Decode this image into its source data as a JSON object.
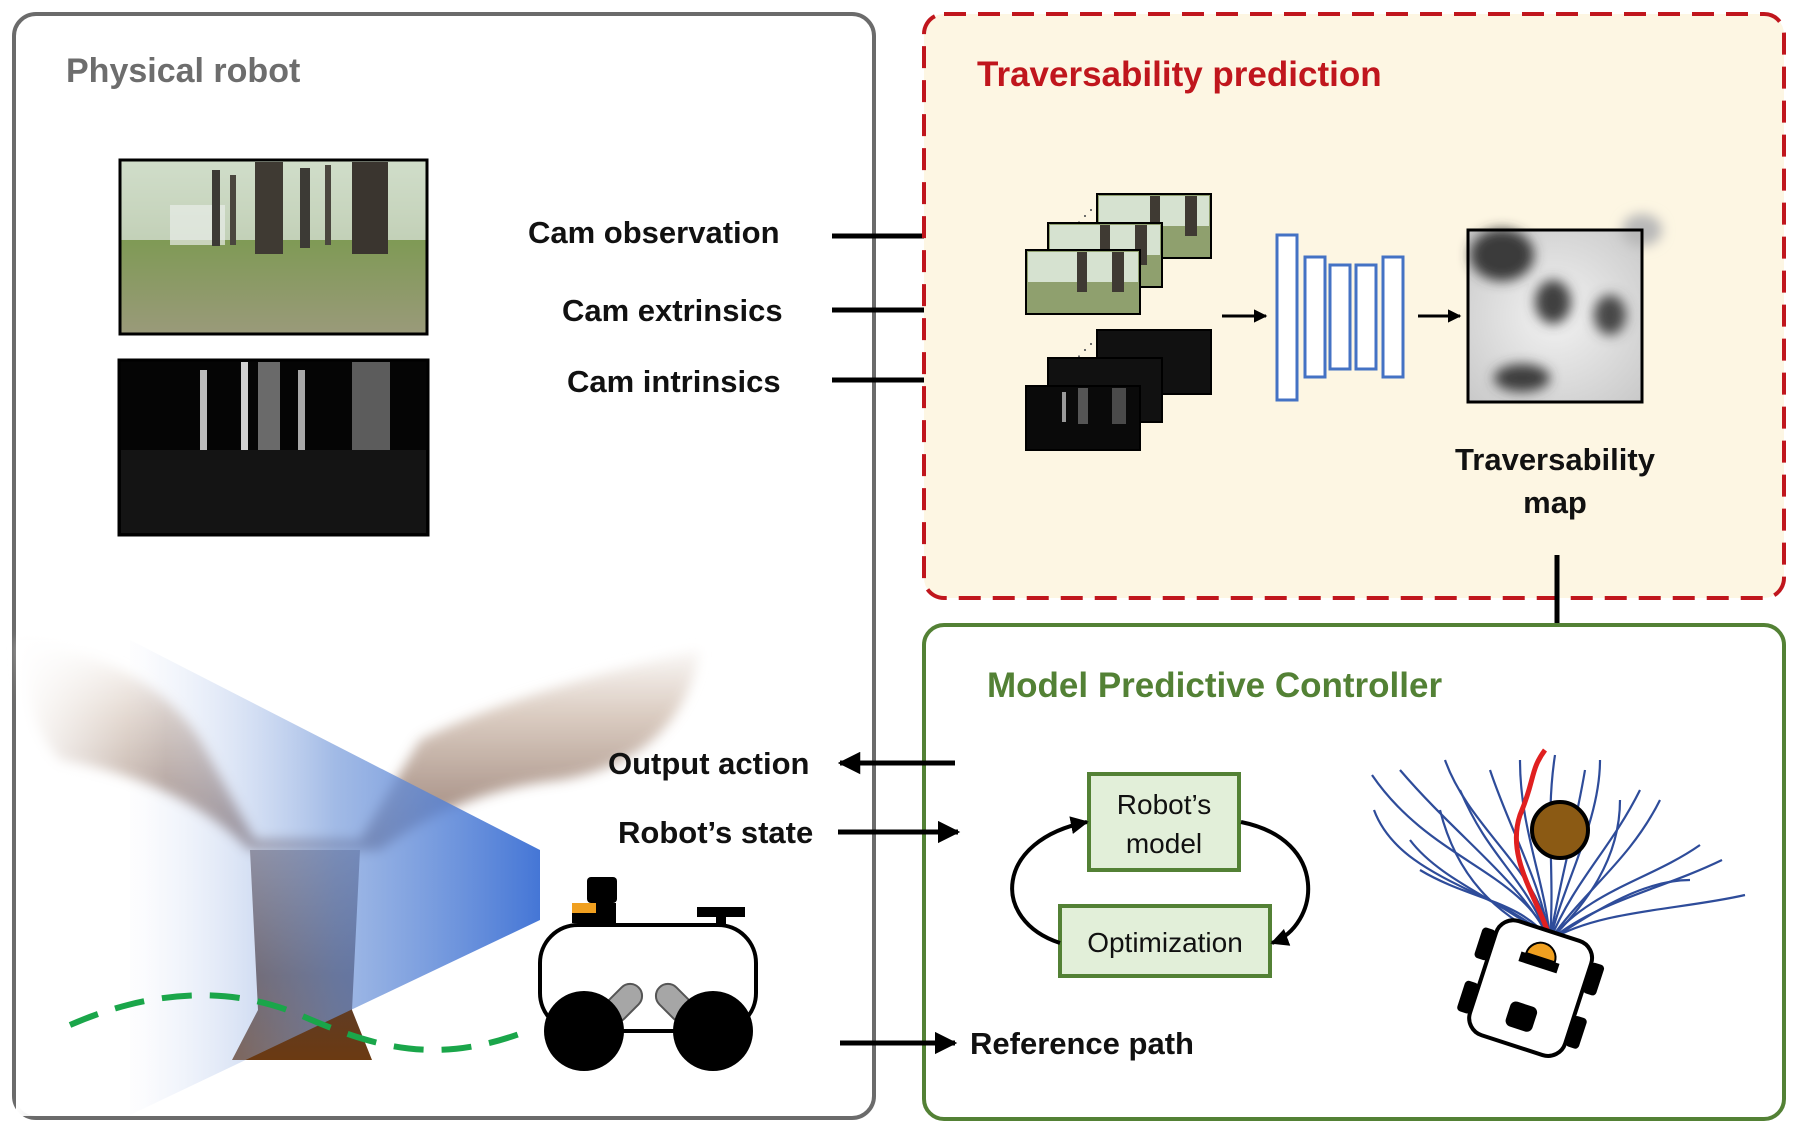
{
  "physical_robot": {
    "title": "Physical robot"
  },
  "inputs": {
    "cam_observation": "Cam observation",
    "cam_extrinsics": "Cam extrinsics",
    "cam_intrinsics": "Cam intrinsics"
  },
  "traversability": {
    "title": "Traversability prediction",
    "map_label_line1": "Traversability",
    "map_label_line2": "map"
  },
  "mpc": {
    "title": "Model Predictive Controller",
    "robot_model_line1": "Robot’s",
    "robot_model_line2": "model",
    "optimization": "Optimization"
  },
  "signals": {
    "output_action": "Output action",
    "robot_state": "Robot’s state",
    "reference_path": "Reference path"
  },
  "colors": {
    "panel_border_grey": "#6b6b6b",
    "traversability_border": "#c0161d",
    "traversability_bg": "#fdf6e3",
    "mpc_border": "#538135",
    "box_fill": "#e2efd9",
    "network_blue": "#4472c4",
    "reference_path_green": "#1aa64a",
    "trajectory_blue": "#2e4c9a",
    "trajectory_red": "#e02020",
    "obstacle_brown": "#8b5a14"
  }
}
